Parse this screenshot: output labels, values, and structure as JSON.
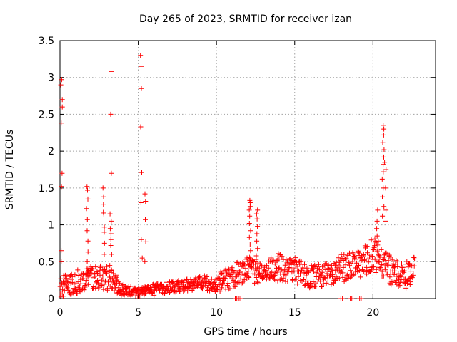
{
  "chart_data": {
    "type": "scatter",
    "title": "Day 265 of 2023, SRMTID for receiver izan",
    "xlabel": "GPS time / hours",
    "ylabel": "SRMTID / TECUs",
    "xlim": [
      0,
      24
    ],
    "ylim": [
      0,
      3.5
    ],
    "grid": true,
    "marker": "+",
    "marker_color": "#ff0000",
    "x_ticks": [
      {
        "value": 0,
        "label": "0"
      },
      {
        "value": 5,
        "label": "5"
      },
      {
        "value": 10,
        "label": "10"
      },
      {
        "value": 15,
        "label": "15"
      },
      {
        "value": 20,
        "label": "20"
      }
    ],
    "y_ticks": [
      {
        "value": 0,
        "label": "0"
      },
      {
        "value": 0.5,
        "label": "0.5"
      },
      {
        "value": 1,
        "label": "1"
      },
      {
        "value": 1.5,
        "label": "1.5"
      },
      {
        "value": 2,
        "label": "2"
      },
      {
        "value": 2.5,
        "label": "2.5"
      },
      {
        "value": 3,
        "label": "3"
      },
      {
        "value": 3.5,
        "label": "3.5"
      }
    ],
    "spikes": [
      {
        "x": 0.1,
        "values": [
          2.97,
          2.9,
          2.7,
          2.6,
          2.38,
          1.7,
          1.52,
          0.65,
          0.5
        ]
      },
      {
        "x": 1.75,
        "values": [
          1.52,
          1.47,
          1.35,
          1.22,
          1.07,
          0.92,
          0.78,
          0.63,
          0.5
        ]
      },
      {
        "x": 2.8,
        "values": [
          1.5,
          1.38,
          1.28,
          1.17,
          1.15,
          0.97,
          0.9,
          0.75,
          0.6
        ]
      },
      {
        "x": 3.25,
        "values": [
          3.08,
          2.5,
          1.7,
          1.15,
          1.05,
          0.95,
          0.88,
          0.8,
          0.72,
          0.6
        ]
      },
      {
        "x": 5.2,
        "values": [
          3.3,
          3.15,
          2.85,
          2.33,
          1.71,
          1.3,
          0.8,
          0.55
        ]
      },
      {
        "x": 5.45,
        "values": [
          1.42,
          1.32,
          1.07,
          0.77,
          0.5
        ]
      },
      {
        "x": 12.15,
        "values": [
          1.33,
          1.3,
          1.25,
          1.2,
          1.12,
          1.02,
          0.92,
          0.83,
          0.74,
          0.65,
          0.56
        ]
      },
      {
        "x": 12.6,
        "values": [
          1.2,
          1.15,
          1.08,
          0.98,
          0.88,
          0.78,
          0.68,
          0.58
        ]
      },
      {
        "x": 20.65,
        "values": [
          2.35,
          2.3,
          2.22,
          2.12,
          2.02,
          1.92,
          1.82,
          1.72,
          1.62,
          1.5,
          1.38,
          1.25,
          1.12
        ]
      },
      {
        "x": 20.3,
        "values": [
          1.2,
          1.05,
          0.95,
          0.85,
          0.78
        ]
      },
      {
        "x": 20.8,
        "values": [
          1.85,
          1.75,
          1.5,
          1.2,
          1.05
        ]
      }
    ],
    "baseline_profile": [
      {
        "x": 0,
        "level": 0.15,
        "spread": 0.14
      },
      {
        "x": 1,
        "level": 0.22,
        "spread": 0.16
      },
      {
        "x": 2,
        "level": 0.28,
        "spread": 0.16
      },
      {
        "x": 3,
        "level": 0.3,
        "spread": 0.2
      },
      {
        "x": 4,
        "level": 0.12,
        "spread": 0.08
      },
      {
        "x": 5,
        "level": 0.08,
        "spread": 0.06
      },
      {
        "x": 6,
        "level": 0.12,
        "spread": 0.08
      },
      {
        "x": 7,
        "level": 0.15,
        "spread": 0.08
      },
      {
        "x": 8,
        "level": 0.18,
        "spread": 0.08
      },
      {
        "x": 9,
        "level": 0.22,
        "spread": 0.1
      },
      {
        "x": 10,
        "level": 0.2,
        "spread": 0.12
      },
      {
        "x": 11,
        "level": 0.3,
        "spread": 0.16
      },
      {
        "x": 12,
        "level": 0.38,
        "spread": 0.18
      },
      {
        "x": 13,
        "level": 0.35,
        "spread": 0.16
      },
      {
        "x": 14,
        "level": 0.42,
        "spread": 0.2
      },
      {
        "x": 15,
        "level": 0.38,
        "spread": 0.18
      },
      {
        "x": 16,
        "level": 0.3,
        "spread": 0.16
      },
      {
        "x": 17,
        "level": 0.32,
        "spread": 0.16
      },
      {
        "x": 18,
        "level": 0.42,
        "spread": 0.2
      },
      {
        "x": 19,
        "level": 0.45,
        "spread": 0.2
      },
      {
        "x": 20,
        "level": 0.62,
        "spread": 0.24
      },
      {
        "x": 21,
        "level": 0.4,
        "spread": 0.2
      },
      {
        "x": 22,
        "level": 0.3,
        "spread": 0.18
      },
      {
        "x": 22.7,
        "level": 0.42,
        "spread": 0.18
      }
    ],
    "zero_points": [
      11.2,
      11.3,
      11.45,
      11.55,
      17.95,
      18.05,
      18.55,
      18.65,
      19.15,
      19.25
    ]
  }
}
